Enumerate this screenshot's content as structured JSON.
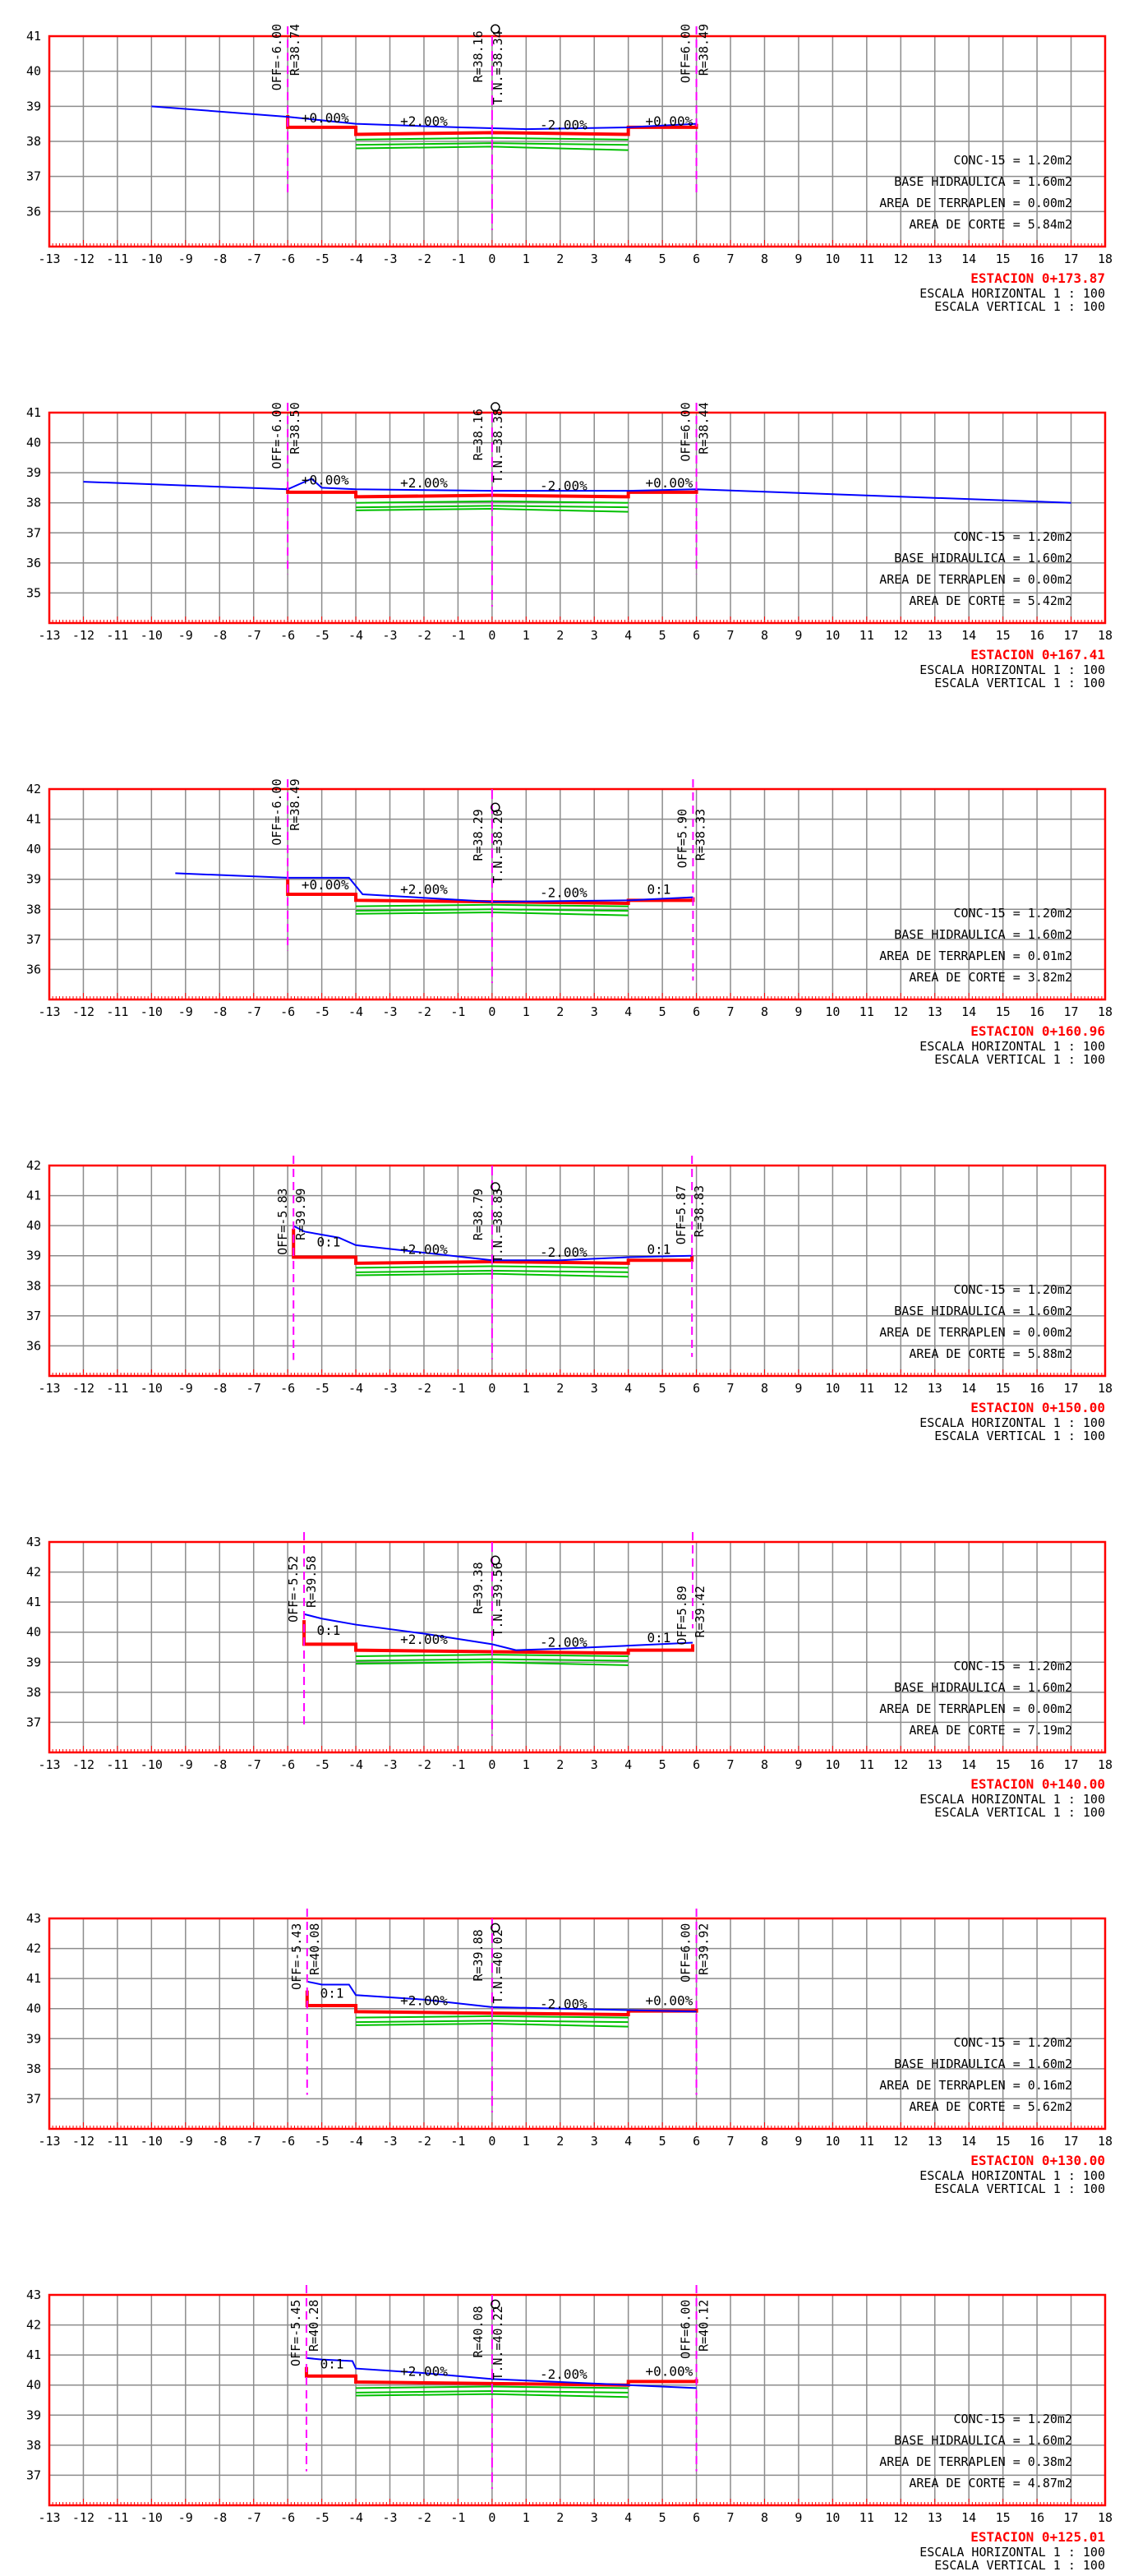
{
  "sheet": {
    "x_ticks": [
      -13,
      -12,
      -11,
      -10,
      -9,
      -8,
      -7,
      -6,
      -5,
      -4,
      -3,
      -2,
      -1,
      0,
      1,
      2,
      3,
      4,
      5,
      6,
      7,
      8,
      9,
      10,
      11,
      12,
      13,
      14,
      15,
      16,
      17,
      18
    ],
    "scale_h": "ESCALA HORIZONTAL 1 : 100",
    "scale_v": "ESCALA VERTICAL 1 : 100",
    "colors": {
      "frame": "#ff0000",
      "grid": "#8c8c8c",
      "ground": "#0000ff",
      "design": "#ff0000",
      "layers": "#00c000",
      "axis": "#ff00ff",
      "text": "#000000"
    }
  },
  "sections": [
    {
      "station": "ESTACION 0+173.87",
      "y_ticks": [
        36,
        37,
        38,
        39,
        40,
        41
      ],
      "offsets": {
        "left": {
          "x": -6.0,
          "off": "OFF=-6.00",
          "r": "R=38.74",
          "top": 41.4
        },
        "right": {
          "x": 6.0,
          "off": "OFF=6.00",
          "r": "R=38.49",
          "top": 41.4
        }
      },
      "center": {
        "r": "R=38.16",
        "tn": "T.N.=38.34",
        "top": 41.3
      },
      "labels": [
        {
          "text": "+0.00%",
          "x": -4.9,
          "y": 38.45
        },
        {
          "text": "+2.00%",
          "x": -2.0,
          "y": 38.35
        },
        {
          "text": "-2.00%",
          "x": 2.1,
          "y": 38.25
        },
        {
          "text": "+0.00%",
          "x": 5.2,
          "y": 38.35
        }
      ],
      "areas": {
        "conc": "CONC-15 = 1.20m2",
        "base": "BASE HIDRAULICA = 1.60m2",
        "terraplen": "AREA DE TERRAPLEN = 0.00m2",
        "corte": "AREA DE CORTE = 5.84m2"
      },
      "ground": [
        [
          -10,
          39.0
        ],
        [
          -6,
          38.7
        ],
        [
          -4,
          38.5
        ],
        [
          -1,
          38.4
        ],
        [
          1,
          38.35
        ],
        [
          4,
          38.4
        ],
        [
          6,
          38.5
        ]
      ],
      "design": [
        [
          -6,
          38.75
        ],
        [
          -6,
          38.4
        ],
        [
          -4,
          38.4
        ],
        [
          -4,
          38.2
        ],
        [
          0,
          38.25
        ],
        [
          4,
          38.2
        ],
        [
          4,
          38.4
        ],
        [
          6,
          38.4
        ],
        [
          6,
          38.5
        ]
      ],
      "layers": [
        [
          -4,
          38.05,
          0,
          38.1,
          4,
          38.05
        ],
        [
          -4,
          37.9,
          0,
          37.95,
          4,
          37.9
        ],
        [
          -4,
          37.8,
          0,
          37.85,
          4,
          37.75
        ]
      ]
    },
    {
      "station": "ESTACION 0+167.41",
      "y_ticks": [
        35,
        36,
        37,
        38,
        39,
        40,
        41
      ],
      "offsets": {
        "left": {
          "x": -6.0,
          "off": "OFF=-6.00",
          "r": "R=38.50",
          "top": 41.4
        },
        "right": {
          "x": 6.0,
          "off": "OFF=6.00",
          "r": "R=38.44",
          "top": 41.4
        }
      },
      "center": {
        "r": "R=38.16",
        "tn": "T.N.=38.38",
        "top": 41.3
      },
      "labels": [
        {
          "text": "+0.00%",
          "x": -4.9,
          "y": 38.5
        },
        {
          "text": "+2.00%",
          "x": -2.0,
          "y": 38.4
        },
        {
          "text": "-2.00%",
          "x": 2.1,
          "y": 38.3
        },
        {
          "text": "+0.00%",
          "x": 5.2,
          "y": 38.4
        }
      ],
      "areas": {
        "conc": "CONC-15 = 1.20m2",
        "base": "BASE HIDRAULICA = 1.60m2",
        "terraplen": "AREA DE TERRAPLEN = 0.00m2",
        "corte": "AREA DE CORTE = 5.42m2"
      },
      "ground": [
        [
          -12,
          38.7
        ],
        [
          -6,
          38.45
        ],
        [
          -5.3,
          38.8
        ],
        [
          -5,
          38.5
        ],
        [
          -4,
          38.45
        ],
        [
          0,
          38.4
        ],
        [
          4,
          38.4
        ],
        [
          6,
          38.45
        ],
        [
          17,
          38.0
        ]
      ],
      "design": [
        [
          -6,
          38.5
        ],
        [
          -6,
          38.35
        ],
        [
          -4,
          38.35
        ],
        [
          -4,
          38.2
        ],
        [
          0,
          38.25
        ],
        [
          4,
          38.2
        ],
        [
          4,
          38.35
        ],
        [
          6,
          38.35
        ],
        [
          6,
          38.44
        ]
      ],
      "layers": [
        [
          -4,
          38.0,
          0,
          38.05,
          4,
          38.0
        ],
        [
          -4,
          37.85,
          0,
          37.9,
          4,
          37.85
        ],
        [
          -4,
          37.75,
          0,
          37.8,
          4,
          37.7
        ]
      ]
    },
    {
      "station": "ESTACION 0+160.96",
      "y_ticks": [
        36,
        37,
        38,
        39,
        40,
        41,
        42
      ],
      "offsets": {
        "left": {
          "x": -6.0,
          "off": "OFF=-6.00",
          "r": "R=38.49",
          "top": 42.4
        },
        "right": {
          "x": 5.9,
          "off": "OFF=5.90",
          "r": "R=38.33",
          "top": 41.4
        }
      },
      "center": {
        "r": "R=38.29",
        "tn": "T.N.=38.20",
        "top": 41.5
      },
      "labels": [
        {
          "text": "+0.00%",
          "x": -4.9,
          "y": 38.55
        },
        {
          "text": "+2.00%",
          "x": -2.0,
          "y": 38.4
        },
        {
          "text": "-2.00%",
          "x": 2.1,
          "y": 38.3
        },
        {
          "text": "0:1",
          "x": 4.9,
          "y": 38.4
        }
      ],
      "areas": {
        "conc": "CONC-15 = 1.20m2",
        "base": "BASE HIDRAULICA = 1.60m2",
        "terraplen": "AREA DE TERRAPLEN = 0.01m2",
        "corte": "AREA DE CORTE = 3.82m2"
      },
      "ground": [
        [
          -9.3,
          39.2
        ],
        [
          -6,
          39.05
        ],
        [
          -4.2,
          39.05
        ],
        [
          -3.8,
          38.5
        ],
        [
          0,
          38.25
        ],
        [
          4,
          38.3
        ],
        [
          5.9,
          38.4
        ]
      ],
      "design": [
        [
          -6,
          39.0
        ],
        [
          -6,
          38.5
        ],
        [
          -4,
          38.5
        ],
        [
          -4,
          38.3
        ],
        [
          0,
          38.25
        ],
        [
          4,
          38.2
        ],
        [
          4,
          38.3
        ],
        [
          5.9,
          38.3
        ],
        [
          5.9,
          38.4
        ]
      ],
      "layers": [
        [
          -4,
          38.1,
          0,
          38.15,
          4,
          38.1
        ],
        [
          -4,
          37.95,
          0,
          38.0,
          4,
          37.95
        ],
        [
          -4,
          37.85,
          0,
          37.9,
          4,
          37.8
        ]
      ]
    },
    {
      "station": "ESTACION 0+150.00",
      "y_ticks": [
        36,
        37,
        38,
        39,
        40,
        41,
        42
      ],
      "offsets": {
        "left": {
          "x": -5.83,
          "off": "OFF=-5.83",
          "r": "R=39.99",
          "top": 41.3
        },
        "right": {
          "x": 5.87,
          "off": "OFF=5.87",
          "r": "R=38.83",
          "top": 41.4
        }
      },
      "center": {
        "r": "R=38.79",
        "tn": "T.N.=38.83",
        "top": 41.4
      },
      "labels": [
        {
          "text": "0:1",
          "x": -4.8,
          "y": 39.2
        },
        {
          "text": "+2.00%",
          "x": -2.0,
          "y": 38.95
        },
        {
          "text": "-2.00%",
          "x": 2.1,
          "y": 38.85
        },
        {
          "text": "0:1",
          "x": 4.9,
          "y": 38.95
        }
      ],
      "areas": {
        "conc": "CONC-15 = 1.20m2",
        "base": "BASE HIDRAULICA = 1.60m2",
        "terraplen": "AREA DE TERRAPLEN = 0.00m2",
        "corte": "AREA DE CORTE = 5.88m2"
      },
      "ground": [
        [
          -5.83,
          39.99
        ],
        [
          -5.5,
          39.8
        ],
        [
          -4.5,
          39.6
        ],
        [
          -4,
          39.35
        ],
        [
          -2,
          39.1
        ],
        [
          0,
          38.85
        ],
        [
          2,
          38.85
        ],
        [
          4,
          38.95
        ],
        [
          5.87,
          39.0
        ]
      ],
      "design": [
        [
          -5.83,
          39.9
        ],
        [
          -5.83,
          38.95
        ],
        [
          -4,
          38.95
        ],
        [
          -4,
          38.75
        ],
        [
          0,
          38.8
        ],
        [
          4,
          38.75
        ],
        [
          4,
          38.85
        ],
        [
          5.87,
          38.85
        ],
        [
          5.87,
          39.0
        ]
      ],
      "layers": [
        [
          -4,
          38.6,
          0,
          38.65,
          4,
          38.6
        ],
        [
          -4,
          38.45,
          0,
          38.5,
          4,
          38.45
        ],
        [
          -4,
          38.35,
          0,
          38.4,
          4,
          38.3
        ]
      ]
    },
    {
      "station": "ESTACION 0+140.00",
      "y_ticks": [
        37,
        38,
        39,
        40,
        41,
        42,
        43
      ],
      "offsets": {
        "left": {
          "x": -5.52,
          "off": "OFF=-5.52",
          "r": "R=39.58",
          "top": 42.6
        },
        "right": {
          "x": 5.89,
          "off": "OFF=5.89",
          "r": "R=39.42",
          "top": 41.6
        }
      },
      "center": {
        "r": "R=39.38",
        "tn": "T.N.=39.56",
        "top": 42.5
      },
      "labels": [
        {
          "text": "0:1",
          "x": -4.8,
          "y": 39.8
        },
        {
          "text": "+2.00%",
          "x": -2.0,
          "y": 39.5
        },
        {
          "text": "-2.00%",
          "x": 2.1,
          "y": 39.4
        },
        {
          "text": "0:1",
          "x": 4.9,
          "y": 39.55
        }
      ],
      "areas": {
        "conc": "CONC-15 = 1.20m2",
        "base": "BASE HIDRAULICA = 1.60m2",
        "terraplen": "AREA DE TERRAPLEN = 0.00m2",
        "corte": "AREA DE CORTE = 7.19m2"
      },
      "ground": [
        [
          -5.52,
          40.6
        ],
        [
          -5,
          40.45
        ],
        [
          -4,
          40.25
        ],
        [
          -2,
          39.95
        ],
        [
          0,
          39.6
        ],
        [
          0.7,
          39.4
        ],
        [
          2,
          39.45
        ],
        [
          4,
          39.55
        ],
        [
          5.89,
          39.65
        ]
      ],
      "design": [
        [
          -5.52,
          40.4
        ],
        [
          -5.52,
          39.6
        ],
        [
          -4,
          39.6
        ],
        [
          -4,
          39.4
        ],
        [
          0,
          39.35
        ],
        [
          4,
          39.3
        ],
        [
          4,
          39.4
        ],
        [
          5.89,
          39.4
        ],
        [
          5.89,
          39.6
        ]
      ],
      "layers": [
        [
          -4,
          39.2,
          0,
          39.25,
          4,
          39.2
        ],
        [
          -4,
          39.05,
          0,
          39.1,
          4,
          39.05
        ],
        [
          -4,
          38.95,
          0,
          39.0,
          4,
          38.9
        ]
      ]
    },
    {
      "station": "ESTACION 0+130.00",
      "y_ticks": [
        37,
        38,
        39,
        40,
        41,
        42,
        43
      ],
      "offsets": {
        "left": {
          "x": -5.43,
          "off": "OFF=-5.43",
          "r": "R=40.08",
          "top": 42.9
        },
        "right": {
          "x": 6.0,
          "off": "OFF=6.00",
          "r": "R=39.92",
          "top": 42.9
        }
      },
      "center": {
        "r": "R=39.88",
        "tn": "T.N.=40.02",
        "top": 42.8
      },
      "labels": [
        {
          "text": "0:1",
          "x": -4.7,
          "y": 40.25
        },
        {
          "text": "+2.00%",
          "x": -2.0,
          "y": 40.0
        },
        {
          "text": "-2.00%",
          "x": 2.1,
          "y": 39.9
        },
        {
          "text": "+0.00%",
          "x": 5.2,
          "y": 40.0
        }
      ],
      "areas": {
        "conc": "CONC-15 = 1.20m2",
        "base": "BASE HIDRAULICA = 1.60m2",
        "terraplen": "AREA DE TERRAPLEN = 0.16m2",
        "corte": "AREA DE CORTE = 5.62m2"
      },
      "ground": [
        [
          -5.43,
          40.9
        ],
        [
          -5,
          40.8
        ],
        [
          -4.2,
          40.8
        ],
        [
          -4,
          40.45
        ],
        [
          -2,
          40.3
        ],
        [
          0,
          40.05
        ],
        [
          2,
          40.0
        ],
        [
          4,
          39.95
        ],
        [
          6,
          39.9
        ]
      ],
      "design": [
        [
          -5.43,
          40.6
        ],
        [
          -5.43,
          40.1
        ],
        [
          -4,
          40.1
        ],
        [
          -4,
          39.9
        ],
        [
          0,
          39.85
        ],
        [
          4,
          39.8
        ],
        [
          4,
          39.92
        ],
        [
          6,
          39.92
        ],
        [
          6,
          40.0
        ]
      ],
      "layers": [
        [
          -4,
          39.7,
          0,
          39.75,
          4,
          39.7
        ],
        [
          -4,
          39.55,
          0,
          39.6,
          4,
          39.55
        ],
        [
          -4,
          39.45,
          0,
          39.5,
          4,
          39.4
        ]
      ]
    },
    {
      "station": "ESTACION 0+125.01",
      "y_ticks": [
        37,
        38,
        39,
        40,
        41,
        42,
        43
      ],
      "offsets": {
        "left": {
          "x": -5.45,
          "off": "OFF=-5.45",
          "r": "R=40.28",
          "top": 42.9
        },
        "right": {
          "x": 6.0,
          "off": "OFF=6.00",
          "r": "R=40.12",
          "top": 42.9
        }
      },
      "center": {
        "r": "R=40.08",
        "tn": "T.N.=40.22",
        "top": 42.8
      },
      "labels": [
        {
          "text": "0:1",
          "x": -4.7,
          "y": 40.45
        },
        {
          "text": "+2.00%",
          "x": -2.0,
          "y": 40.2
        },
        {
          "text": "-2.00%",
          "x": 2.1,
          "y": 40.1
        },
        {
          "text": "+0.00%",
          "x": 5.2,
          "y": 40.2
        }
      ],
      "areas": {
        "conc": "CONC-15 = 1.20m2",
        "base": "BASE HIDRAULICA = 1.60m2",
        "terraplen": "AREA DE TERRAPLEN = 0.38m2",
        "corte": "AREA DE CORTE = 4.87m2"
      },
      "ground": [
        [
          -5.45,
          40.9
        ],
        [
          -5,
          40.85
        ],
        [
          -4.1,
          40.8
        ],
        [
          -4,
          40.55
        ],
        [
          -2,
          40.4
        ],
        [
          0,
          40.2
        ],
        [
          2,
          40.1
        ],
        [
          4,
          40.0
        ],
        [
          6,
          39.9
        ]
      ],
      "design": [
        [
          -5.45,
          40.6
        ],
        [
          -5.45,
          40.3
        ],
        [
          -4,
          40.3
        ],
        [
          -4,
          40.1
        ],
        [
          0,
          40.05
        ],
        [
          4,
          40.0
        ],
        [
          4,
          40.12
        ],
        [
          6,
          40.12
        ],
        [
          6,
          40.2
        ]
      ],
      "layers": [
        [
          -4,
          39.9,
          0,
          39.95,
          4,
          39.9
        ],
        [
          -4,
          39.75,
          0,
          39.8,
          4,
          39.75
        ],
        [
          -4,
          39.65,
          0,
          39.7,
          4,
          39.6
        ]
      ]
    }
  ]
}
